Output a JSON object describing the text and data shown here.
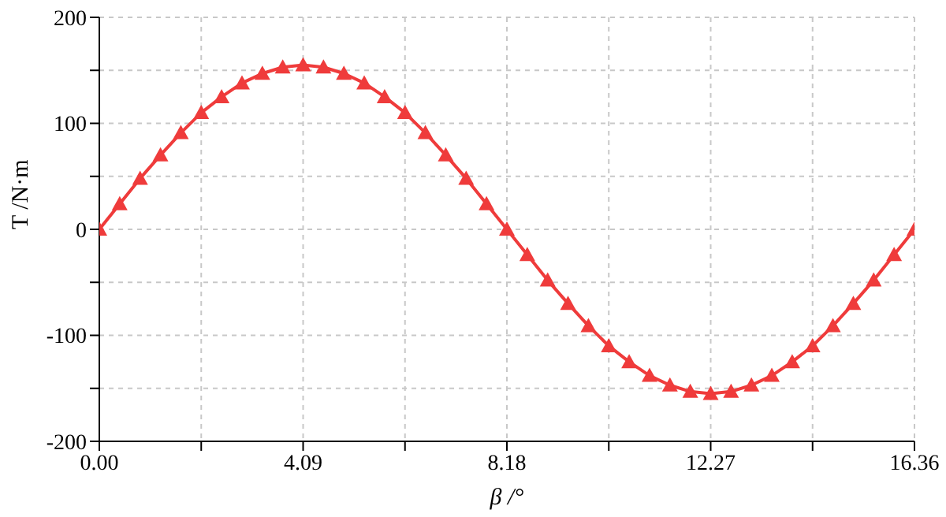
{
  "chart_data": {
    "type": "line",
    "xlabel": "β /°",
    "ylabel": "T /N·m",
    "x": [
      0,
      0.409,
      0.818,
      1.227,
      1.636,
      2.045,
      2.454,
      2.863,
      3.272,
      3.681,
      4.09,
      4.499,
      4.908,
      5.317,
      5.726,
      6.135,
      6.544,
      6.953,
      7.362,
      7.771,
      8.18,
      8.589,
      8.998,
      9.407,
      9.816,
      10.225,
      10.634,
      11.043,
      11.452,
      11.861,
      12.27,
      12.679,
      13.088,
      13.497,
      13.906,
      14.315,
      14.724,
      15.133,
      15.542,
      15.951,
      16.36
    ],
    "series": [
      {
        "color": "#ef3b3b",
        "values": [
          0,
          24,
          48,
          70,
          91,
          110,
          125,
          138,
          147,
          153,
          155,
          153,
          147,
          138,
          125,
          110,
          91,
          70,
          48,
          24,
          0,
          -24,
          -48,
          -70,
          -91,
          -110,
          -125,
          -138,
          -147,
          -153,
          -155,
          -153,
          -147,
          -138,
          -125,
          -110,
          -91,
          -70,
          -48,
          -24,
          0
        ]
      }
    ],
    "xlim": [
      0,
      16.36
    ],
    "xticks": [
      "0.00",
      {
        "value": 2.045,
        "label": null
      },
      {
        "value": 4.09,
        "label": "4.09"
      },
      {
        "value": 6.135,
        "label": null
      },
      {
        "value": 8.18,
        "label": "8.18"
      },
      {
        "value": 10.225,
        "label": null
      },
      {
        "value": 12.27,
        "label": "12.27"
      },
      {
        "value": 14.315,
        "label": null
      },
      {
        "value": 16.36,
        "label": "16.36"
      }
    ],
    "ylim": [
      -200,
      200
    ],
    "yticks": [
      -200,
      {
        "value": -150,
        "label": null
      },
      -100,
      {
        "value": -50,
        "label": null
      },
      0,
      {
        "value": 50,
        "label": null
      },
      100,
      {
        "value": 150,
        "label": null
      },
      200
    ],
    "grid": true,
    "marker": "triangle",
    "line_style": "solid",
    "legend": false
  }
}
